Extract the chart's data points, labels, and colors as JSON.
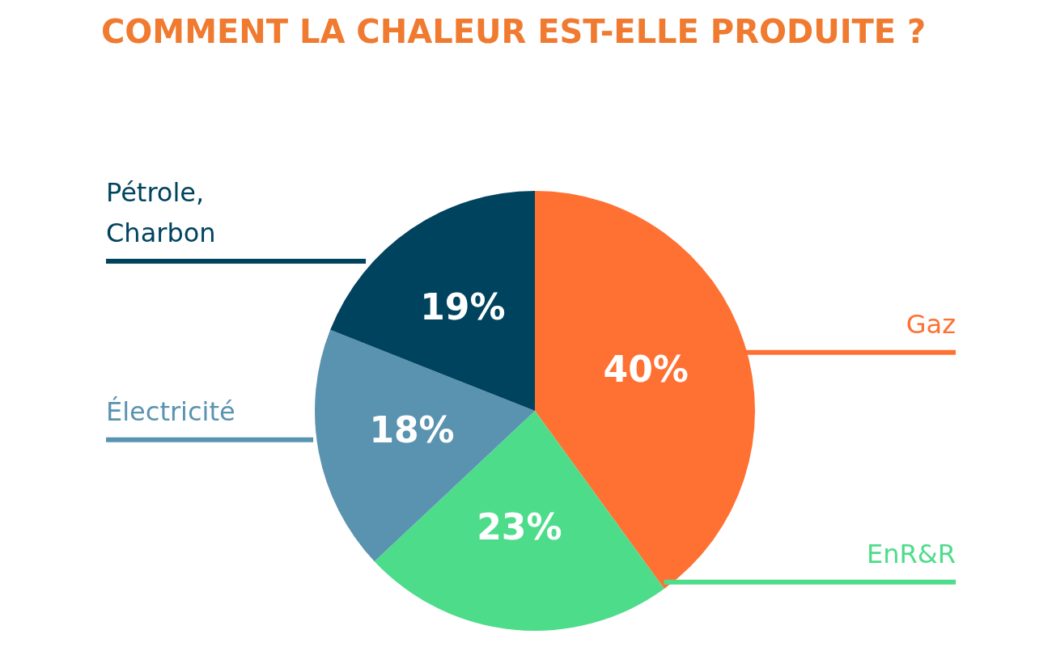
{
  "chart_data": {
    "type": "pie",
    "title": "COMMENT LA CHALEUR EST-ELLE PRODUITE ?",
    "categories": [
      "Gaz",
      "EnR&R",
      "Électricité",
      "Pétrole, Charbon"
    ],
    "values": [
      40,
      23,
      18,
      19
    ],
    "colors": [
      "#ff7033",
      "#4ddc8a",
      "#5a93b0",
      "#00435f"
    ],
    "value_labels": [
      "40%",
      "23%",
      "18%",
      "19%"
    ]
  }
}
